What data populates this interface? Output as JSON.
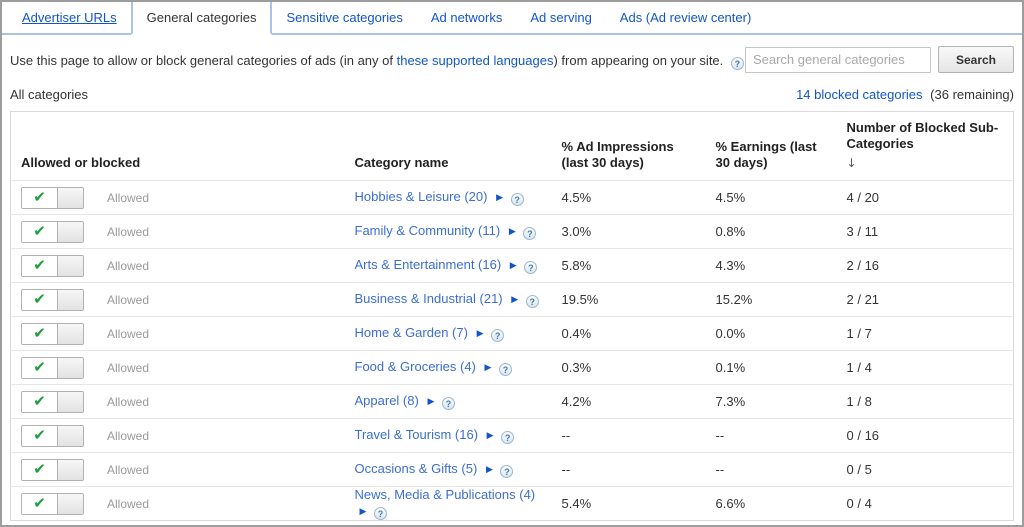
{
  "tabs": [
    {
      "label": "Advertiser URLs",
      "active": false
    },
    {
      "label": "General categories",
      "active": true
    },
    {
      "label": "Sensitive categories",
      "active": false
    },
    {
      "label": "Ad networks",
      "active": false
    },
    {
      "label": "Ad serving",
      "active": false
    },
    {
      "label": "Ads (Ad review center)",
      "active": false
    }
  ],
  "intro": {
    "text_before": "Use this page to allow or block general categories of ads (in any of ",
    "link": "these supported languages",
    "text_after": ") from appearing on your site."
  },
  "search": {
    "placeholder": "Search general categories",
    "button": "Search",
    "value": ""
  },
  "filter_bar": {
    "scope_label": "All categories",
    "blocked_link": "14 blocked categories",
    "remaining": "(36 remaining)"
  },
  "table": {
    "columns": [
      "Allowed or blocked",
      "Category name",
      "% Ad Impressions (last 30 days)",
      "% Earnings (last 30 days)",
      "Number of Blocked Sub-Categories"
    ],
    "sort_arrow": "↓",
    "rows": [
      {
        "state": "Allowed",
        "category": "Hobbies & Leisure (20)",
        "impressions": "4.5%",
        "earnings": "4.5%",
        "blocked": "4 / 20"
      },
      {
        "state": "Allowed",
        "category": "Family & Community (11)",
        "impressions": "3.0%",
        "earnings": "0.8%",
        "blocked": "3 / 11"
      },
      {
        "state": "Allowed",
        "category": "Arts & Entertainment (16)",
        "impressions": "5.8%",
        "earnings": "4.3%",
        "blocked": "2 / 16"
      },
      {
        "state": "Allowed",
        "category": "Business & Industrial (21)",
        "impressions": "19.5%",
        "earnings": "15.2%",
        "blocked": "2 / 21"
      },
      {
        "state": "Allowed",
        "category": "Home & Garden (7)",
        "impressions": "0.4%",
        "earnings": "0.0%",
        "blocked": "1 / 7"
      },
      {
        "state": "Allowed",
        "category": "Food & Groceries (4)",
        "impressions": "0.3%",
        "earnings": "0.1%",
        "blocked": "1 / 4"
      },
      {
        "state": "Allowed",
        "category": "Apparel (8)",
        "impressions": "4.2%",
        "earnings": "7.3%",
        "blocked": "1 / 8"
      },
      {
        "state": "Allowed",
        "category": "Travel & Tourism (16)",
        "impressions": "--",
        "earnings": "--",
        "blocked": "0 / 16"
      },
      {
        "state": "Allowed",
        "category": "Occasions & Gifts (5)",
        "impressions": "--",
        "earnings": "--",
        "blocked": "0 / 5"
      },
      {
        "state": "Allowed",
        "category": "News, Media & Publications (4)",
        "impressions": "5.4%",
        "earnings": "6.6%",
        "blocked": "0 / 4"
      }
    ]
  },
  "icons": {
    "check": "✔",
    "expand_triangle": "▶",
    "help": "?"
  },
  "colors": {
    "link_blue": "#1155cc",
    "category_link_blue": "#3c6ed2",
    "check_green": "#1e9e3c",
    "tab_border_blue": "#aac4e6",
    "outer_border_gray": "#9d9d9d"
  }
}
